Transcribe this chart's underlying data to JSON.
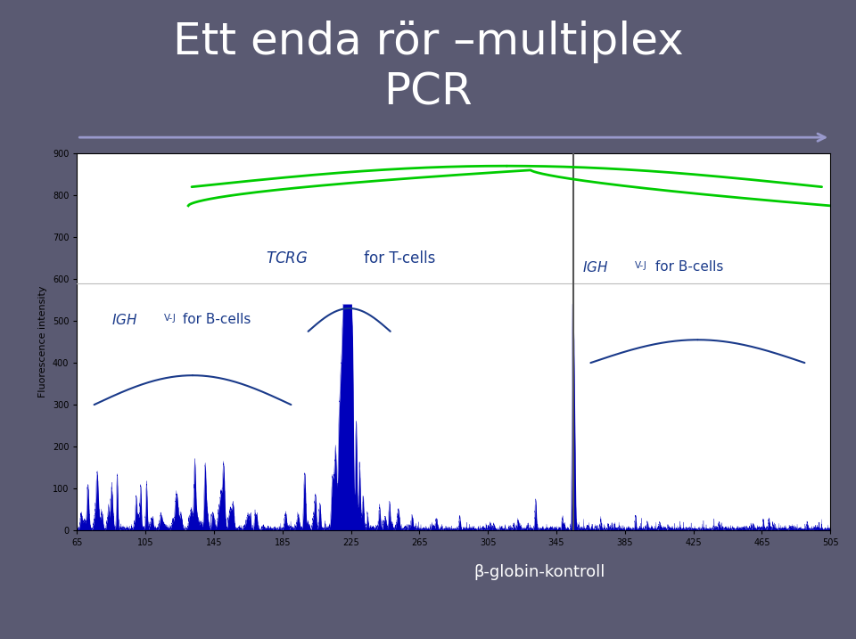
{
  "title_line1": "Ett enda rör –multiplex",
  "title_line2": "PCR",
  "title_color": "white",
  "title_fontsize": 36,
  "bg_color": "#5a5a72",
  "plot_bg_color": "white",
  "ylabel": "Fluorescence intensity",
  "x_ticks": [
    65,
    105,
    145,
    185,
    225,
    265,
    305,
    345,
    385,
    425,
    465,
    505
  ],
  "xmin": 65,
  "xmax": 505,
  "ymin": 0,
  "ymax": 900,
  "arrow_color": "#9999cc",
  "green_line_color": "#00cc00",
  "blue_spike_color": "#0000bb",
  "beta_globin_text": "β-globin-kontroll",
  "beta_globin_color": "white",
  "vertical_line_x": 355,
  "vertical_line_color": "#555555",
  "label_color_blue": "#1a3a8a",
  "separator_y": 590
}
